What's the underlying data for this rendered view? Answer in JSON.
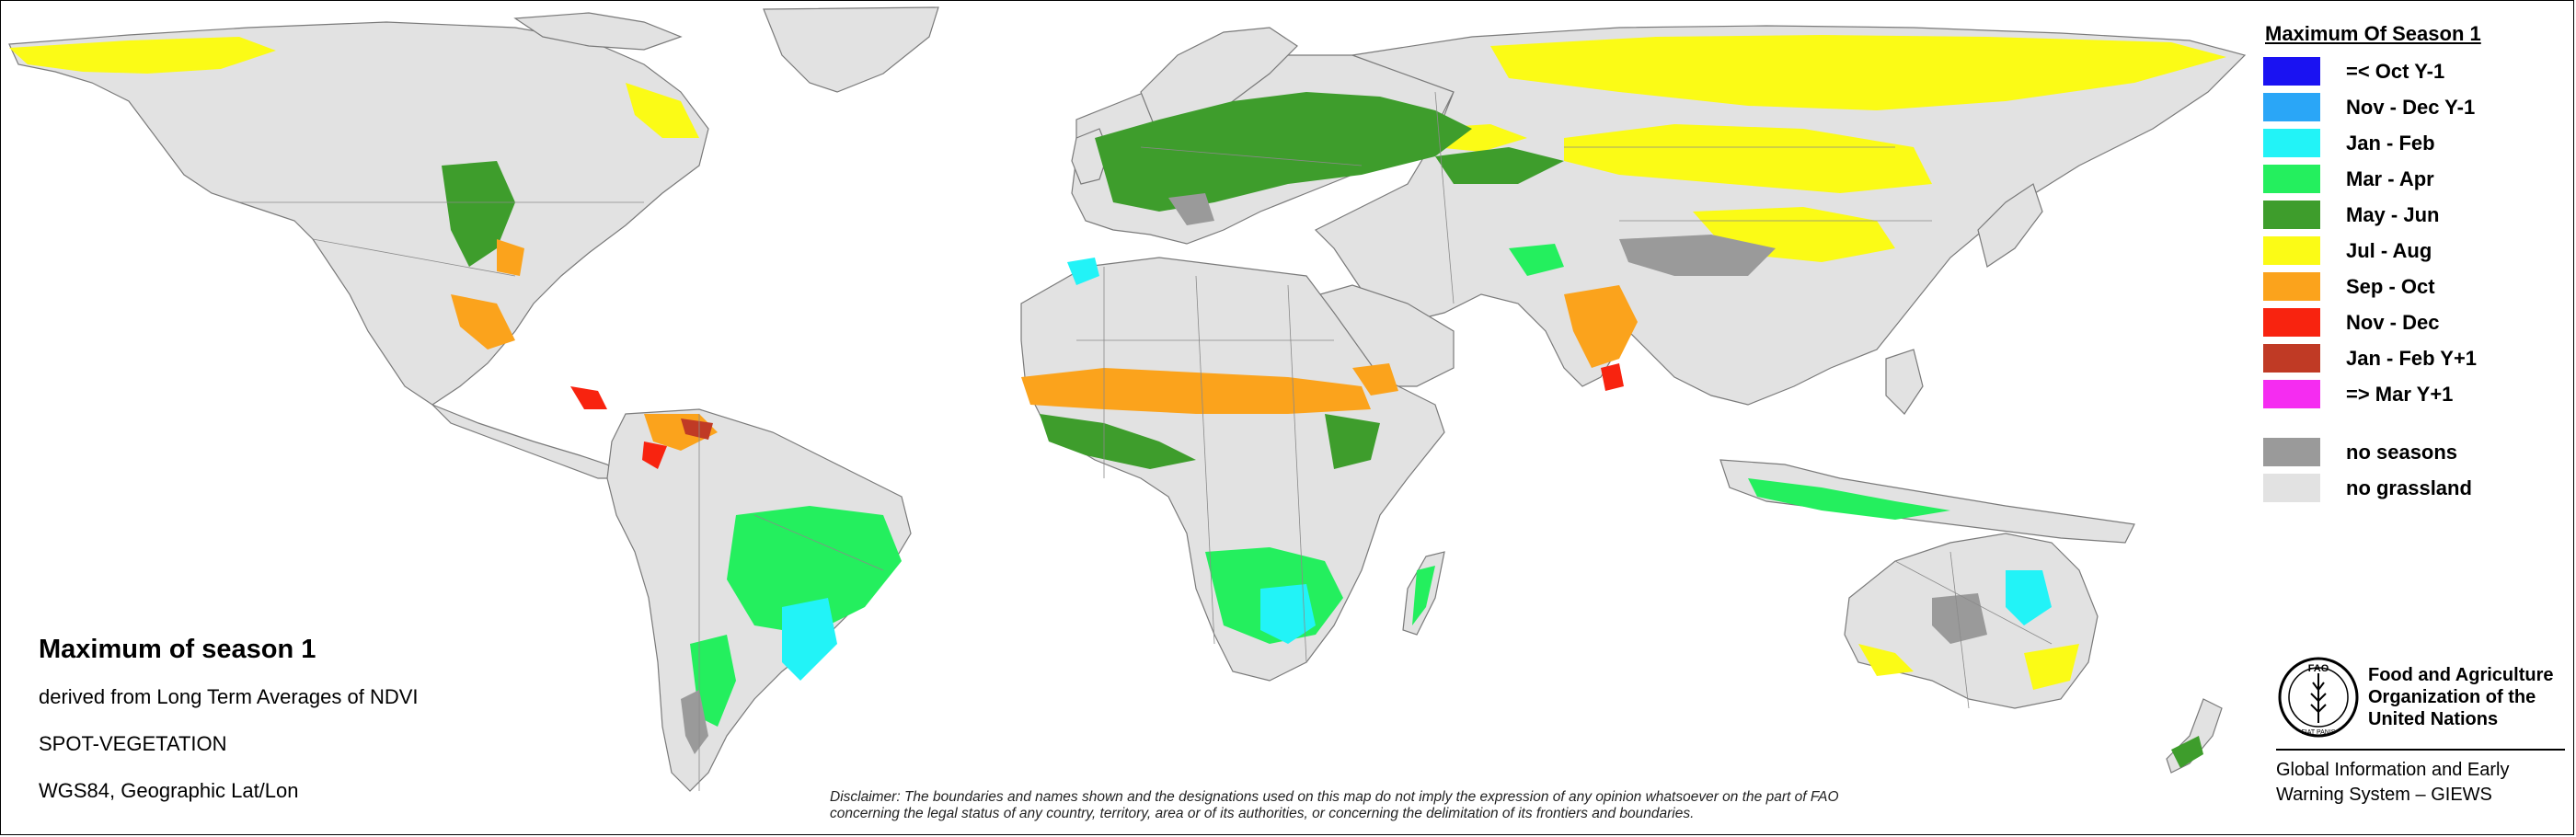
{
  "legend": {
    "title": "Maximum Of Season 1",
    "items": [
      {
        "label": "=< Oct Y-1",
        "color": "#1a12f2"
      },
      {
        "label": "Nov - Dec Y-1",
        "color": "#2aa6f7"
      },
      {
        "label": "Jan - Feb",
        "color": "#22f3f7"
      },
      {
        "label": "Mar - Apr",
        "color": "#24ef5e"
      },
      {
        "label": "May - Jun",
        "color": "#3e9d2c"
      },
      {
        "label": "Jul - Aug",
        "color": "#fbfb16"
      },
      {
        "label": "Sep - Oct",
        "color": "#fba31c"
      },
      {
        "label": "Nov - Dec",
        "color": "#f8230f"
      },
      {
        "label": "Jan - Feb Y+1",
        "color": "#c03a25"
      },
      {
        "label": "=> Mar Y+1",
        "color": "#f52cf1"
      }
    ],
    "extra": [
      {
        "label": "no seasons",
        "color": "#9a9a9a"
      },
      {
        "label": "no grassland",
        "color": "#e2e2e2"
      }
    ]
  },
  "info": {
    "title": "Maximum of season 1",
    "line1": "derived from Long Term Averages of NDVI",
    "line2": "SPOT-VEGETATION",
    "line3": "WGS84, Geographic Lat/Lon"
  },
  "disclaimer": {
    "line1": "Disclaimer: The boundaries and names shown and the designations used on this map do not imply the expression of any opinion whatsoever on the part of FAO",
    "line2": "concerning the legal status of any country, territory, area or of its authorities, or concerning the delimitation of its frontiers and boundaries."
  },
  "organization": {
    "name_line1": "Food and Agriculture",
    "name_line2": "Organization of the",
    "name_line3": "United Nations",
    "system_line1": "Global Information and Early",
    "system_line2": "Warning System – GIEWS",
    "logo_text": "FAO",
    "logo_motto": "FIAT PANIS"
  },
  "map": {
    "land_color": "#e2e2e2",
    "border_color": "#7a7a7a"
  }
}
